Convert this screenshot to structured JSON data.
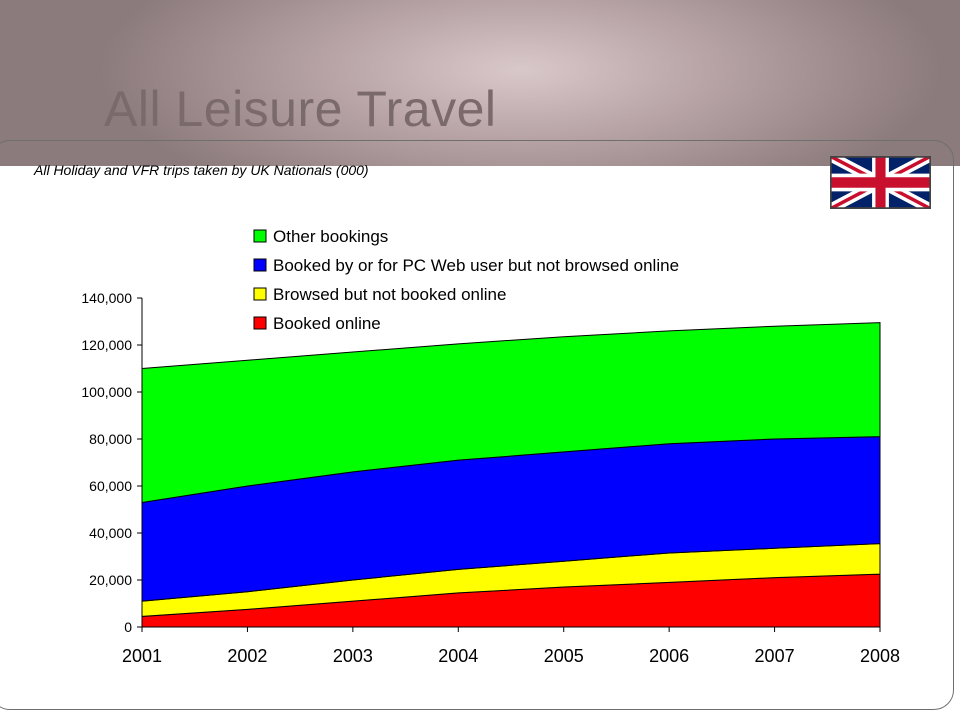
{
  "slide": {
    "title": "All Leisure Travel",
    "subtitle": "All Holiday and VFR trips taken by UK Nationals (000)",
    "flag_icon": "uk-union-jack-flag"
  },
  "chart_data": {
    "type": "area",
    "stacked": true,
    "categories": [
      "2001",
      "2002",
      "2003",
      "2004",
      "2005",
      "2006",
      "2007",
      "2008"
    ],
    "series": [
      {
        "name": "Booked online",
        "color": "#ff0000",
        "values": [
          4500,
          7500,
          11000,
          14500,
          17000,
          19000,
          21000,
          22500
        ]
      },
      {
        "name": "Browsed but not booked online",
        "color": "#ffff00",
        "values": [
          6500,
          7500,
          9000,
          10000,
          11000,
          12500,
          12500,
          13000
        ]
      },
      {
        "name": "Booked by or for PC Web user but not browsed online",
        "color": "#0000ff",
        "values": [
          42000,
          45000,
          46000,
          46500,
          46500,
          46500,
          46500,
          45500
        ]
      },
      {
        "name": "Other bookings",
        "color": "#00ff00",
        "values": [
          57000,
          53500,
          51000,
          49500,
          49000,
          48000,
          48000,
          48500
        ]
      }
    ],
    "ylim": [
      0,
      140000
    ],
    "yticks": [
      "0",
      "20,000",
      "40,000",
      "60,000",
      "80,000",
      "100,000",
      "120,000",
      "140,000"
    ],
    "legend_position": "top-left",
    "grid": false
  }
}
